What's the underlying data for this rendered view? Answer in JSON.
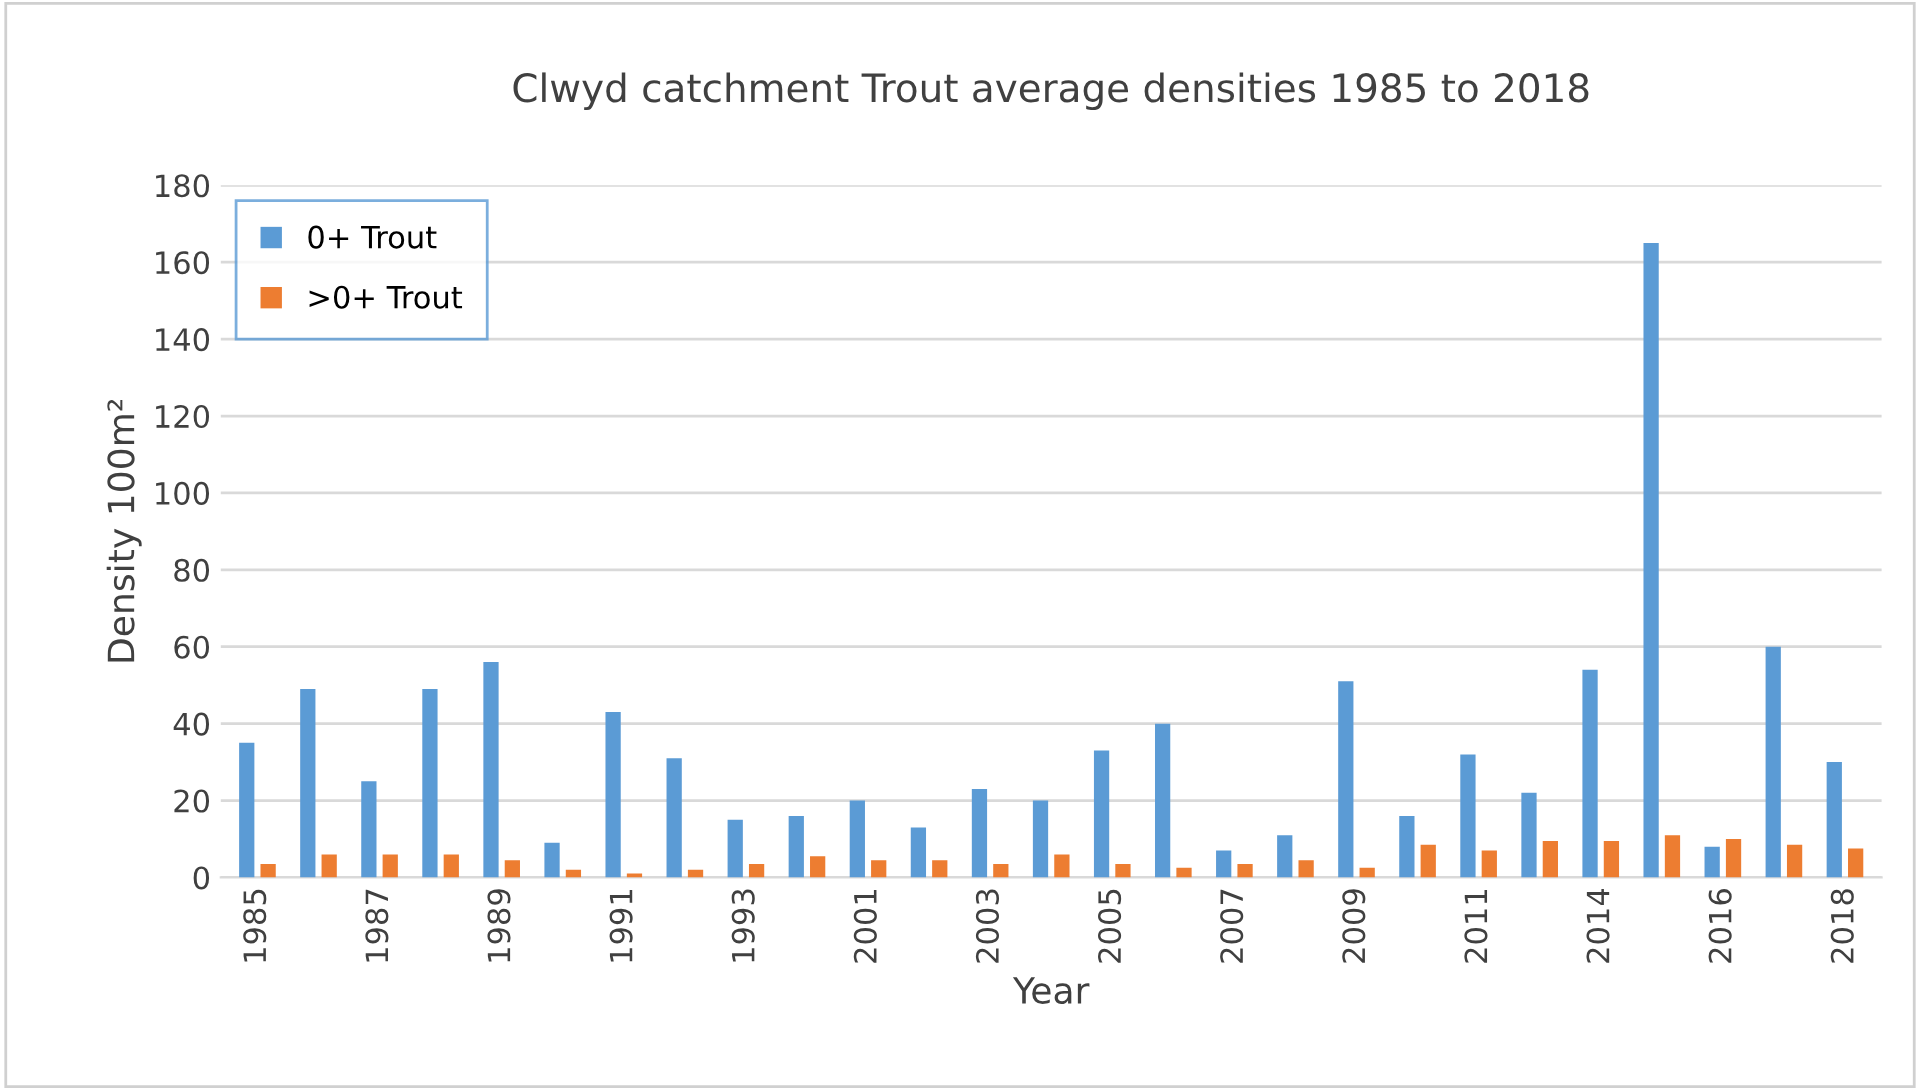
{
  "chart_data": {
    "type": "bar",
    "title": "Clwyd catchment Trout average densities 1985 to 2018",
    "xlabel": "Year",
    "ylabel": "Density 100m²",
    "categories": [
      "1985",
      null,
      "1987",
      null,
      "1989",
      null,
      "1991",
      null,
      "1993",
      null,
      "2001",
      null,
      "2003",
      null,
      "2005",
      null,
      "2007",
      null,
      "2009",
      null,
      "2011",
      null,
      "2014",
      null,
      "2016",
      null,
      "2018"
    ],
    "series": [
      {
        "name": "0+ Trout",
        "color": "#5b9bd5",
        "values": [
          35,
          49,
          25,
          49,
          56,
          9,
          43,
          31,
          15,
          16,
          20,
          13,
          23,
          20,
          33,
          40,
          7,
          11,
          51,
          16,
          32,
          22,
          54,
          165,
          8,
          60,
          30
        ]
      },
      {
        "name": ">0+ Trout",
        "color": "#ed7d31",
        "values": [
          3.5,
          6,
          6,
          6,
          4.5,
          2,
          1,
          2,
          3.5,
          5.5,
          4.5,
          4.5,
          3.5,
          6,
          3.5,
          2.5,
          3.5,
          4.5,
          2.5,
          8.5,
          7,
          9.5,
          9.5,
          11,
          10,
          8.5,
          7.5
        ]
      }
    ],
    "ylim": [
      0,
      180
    ],
    "yticks": [
      0,
      20,
      40,
      60,
      80,
      100,
      120,
      140,
      160,
      180
    ],
    "grid": "y",
    "legend": "top left"
  }
}
